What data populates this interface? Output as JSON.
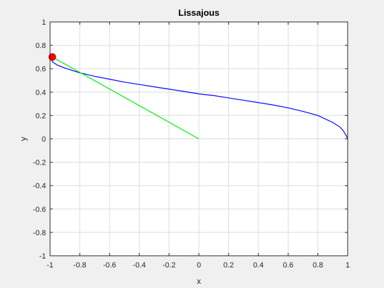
{
  "chart_data": {
    "type": "line",
    "title": "Lissajous",
    "xlabel": "x",
    "ylabel": "y",
    "xlim": [
      -1,
      1
    ],
    "ylim": [
      -1,
      1
    ],
    "grid": true,
    "xticks": [
      -1,
      -0.8,
      -0.6,
      -0.4,
      -0.2,
      0,
      0.2,
      0.4,
      0.6,
      0.8,
      1
    ],
    "yticks": [
      -1,
      -0.8,
      -0.6,
      -0.4,
      -0.2,
      0,
      0.2,
      0.4,
      0.6,
      0.8,
      1
    ],
    "xtick_labels": [
      "-1",
      "-0.8",
      "-0.6",
      "-0.4",
      "-0.2",
      "0",
      "0.2",
      "0.4",
      "0.6",
      "0.8",
      "1"
    ],
    "ytick_labels": [
      "-1",
      "-0.8",
      "-0.6",
      "-0.4",
      "-0.2",
      "0",
      "0.2",
      "0.4",
      "0.6",
      "0.8",
      "1"
    ],
    "series": [
      {
        "type": "line",
        "color": "#0000ff",
        "x": [
          1.0,
          0.99,
          0.97,
          0.95,
          0.9,
          0.8,
          0.7,
          0.6,
          0.5,
          0.4,
          0.3,
          0.2,
          0.1,
          0.0,
          -0.1,
          -0.2,
          -0.3,
          -0.4,
          -0.5,
          -0.6,
          -0.7,
          -0.8,
          -0.85,
          -0.9,
          -0.95,
          -0.98,
          -1.0
        ],
        "y": [
          0.0,
          0.03,
          0.07,
          0.1,
          0.14,
          0.2,
          0.235,
          0.265,
          0.29,
          0.31,
          0.33,
          0.35,
          0.37,
          0.385,
          0.405,
          0.425,
          0.445,
          0.465,
          0.485,
          0.51,
          0.535,
          0.565,
          0.585,
          0.605,
          0.63,
          0.655,
          0.69
        ]
      },
      {
        "type": "line",
        "color": "#00ee00",
        "x": [
          0.0,
          -0.985
        ],
        "y": [
          0.0,
          0.7
        ]
      }
    ],
    "marker": {
      "x": -0.985,
      "y": 0.7,
      "color": "#ff0000"
    }
  }
}
